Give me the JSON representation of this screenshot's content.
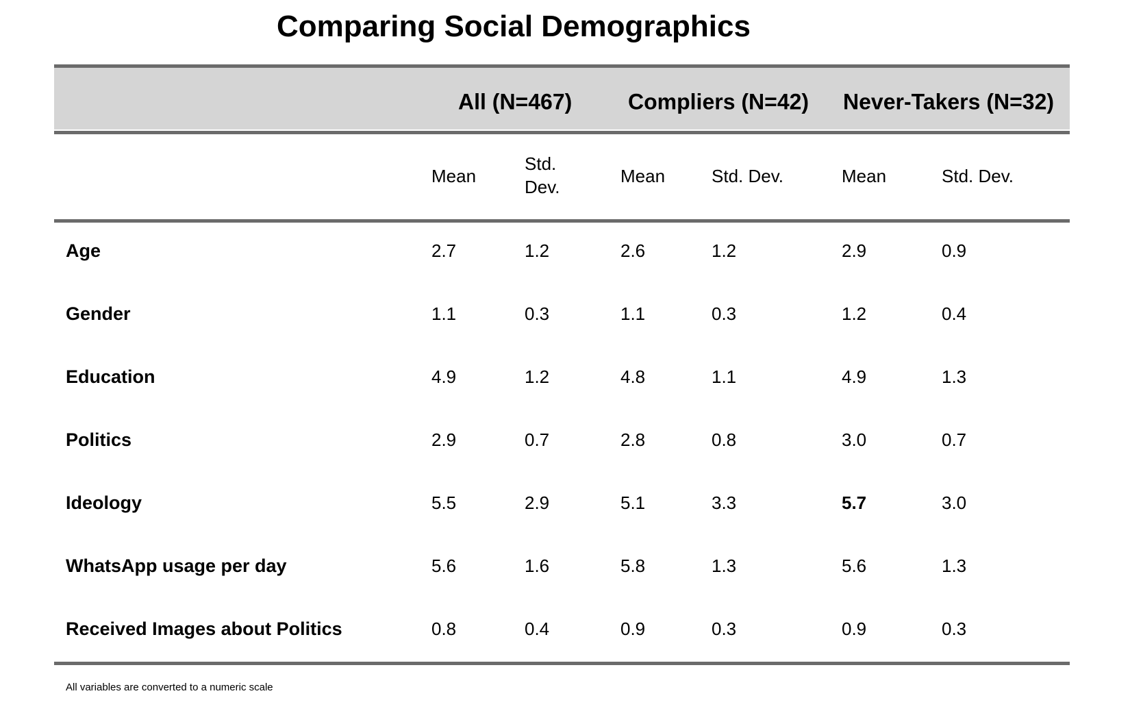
{
  "title": "Comparing Social Demographics",
  "table": {
    "groups": [
      {
        "label": "All (N=467)"
      },
      {
        "label": "Compliers (N=42)"
      },
      {
        "label": "Never-Takers (N=32)"
      }
    ],
    "subheaders": [
      "Mean",
      "Std. Dev.",
      "Mean",
      "Std. Dev.",
      "Mean",
      "Std. Dev."
    ],
    "rows": [
      {
        "label": "Age",
        "values": [
          "2.7",
          "1.2",
          "2.6",
          "1.2",
          "2.9",
          "0.9"
        ]
      },
      {
        "label": "Gender",
        "values": [
          "1.1",
          "0.3",
          "1.1",
          "0.3",
          "1.2",
          "0.4"
        ]
      },
      {
        "label": "Education",
        "values": [
          "4.9",
          "1.2",
          "4.8",
          "1.1",
          "4.9",
          "1.3"
        ]
      },
      {
        "label": "Politics",
        "values": [
          "2.9",
          "0.7",
          "2.8",
          "0.8",
          "3.0",
          "0.7"
        ]
      },
      {
        "label": "Ideology",
        "values": [
          "5.5",
          "2.9",
          "5.1",
          "3.3",
          "5.7",
          "3.0"
        ],
        "bold_cells": [
          4
        ]
      },
      {
        "label": "WhatsApp usage per day",
        "values": [
          "5.6",
          "1.6",
          "5.8",
          "1.3",
          "5.6",
          "1.3"
        ]
      },
      {
        "label": "Received Images about Politics",
        "values": [
          "0.8",
          "0.4",
          "0.9",
          "0.3",
          "0.9",
          "0.3"
        ]
      }
    ]
  },
  "note": "All variables are converted to a numeric scale",
  "colors": {
    "header_band": "#d5d5d5",
    "rule": "#6b6b6b"
  }
}
